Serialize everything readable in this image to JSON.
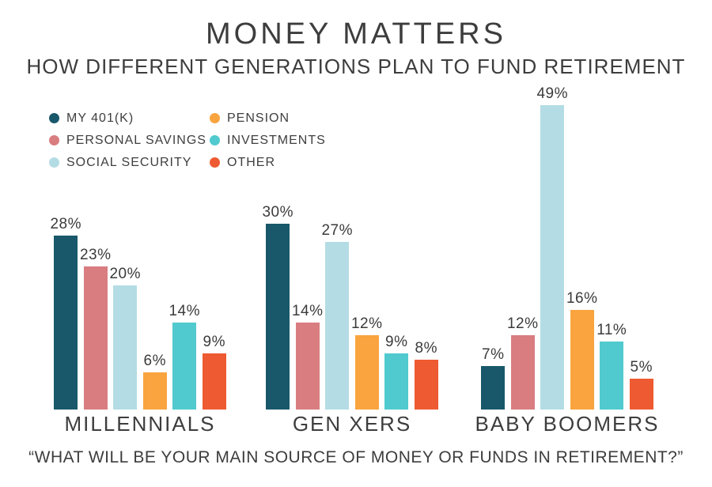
{
  "chart_data": {
    "type": "bar",
    "title": "MONEY MATTERS",
    "subtitle": "HOW DIFFERENT GENERATIONS PLAN TO FUND RETIREMENT",
    "caption": "“WHAT WILL BE YOUR MAIN SOURCE OF MONEY OR FUNDS IN RETIREMENT?”",
    "categories": [
      "MILLENNIALS",
      "GEN XERS",
      "BABY BOOMERS"
    ],
    "series": [
      {
        "name": "MY 401(K)",
        "color": "#18586a",
        "values": [
          28,
          30,
          7
        ]
      },
      {
        "name": "PERSONAL SAVINGS",
        "color": "#d97d80",
        "values": [
          23,
          14,
          12
        ]
      },
      {
        "name": "SOCIAL SECURITY",
        "color": "#b4dce4",
        "values": [
          20,
          27,
          49
        ]
      },
      {
        "name": "PENSION",
        "color": "#f9a43f",
        "values": [
          6,
          12,
          16
        ]
      },
      {
        "name": "INVESTMENTS",
        "color": "#50cace",
        "values": [
          14,
          9,
          11
        ]
      },
      {
        "name": "OTHER",
        "color": "#ee5a31",
        "values": [
          9,
          8,
          5
        ]
      }
    ],
    "value_suffix": "%",
    "ylim": [
      0,
      49
    ],
    "grid": false,
    "legend_position": "top-left",
    "legend_rows": [
      [
        "MY 401(K)",
        "PENSION"
      ],
      [
        "PERSONAL SAVINGS",
        "INVESTMENTS"
      ],
      [
        "SOCIAL SECURITY",
        "OTHER"
      ]
    ],
    "text_color": "#3d3d3d",
    "background_color": "#ffffff"
  }
}
